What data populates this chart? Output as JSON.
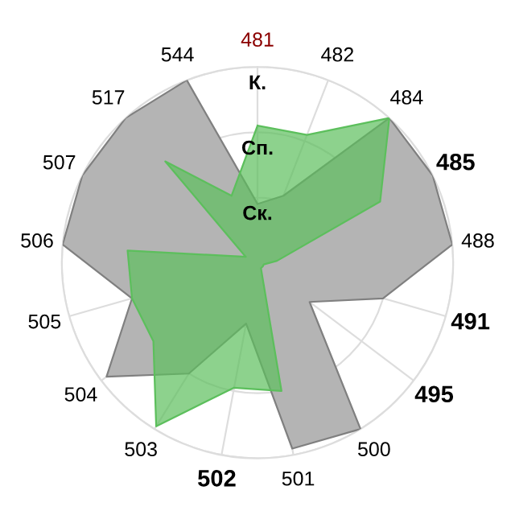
{
  "chart_data": {
    "type": "radar",
    "categories": [
      "481",
      "482",
      "484",
      "485",
      "488",
      "491",
      "495",
      "500",
      "501",
      "502",
      "503",
      "504",
      "505",
      "506",
      "507",
      "517",
      "544"
    ],
    "series": [
      {
        "color": "#b4b4b4",
        "values": [
          0.9,
          1.1,
          3.0,
          3.0,
          3.0,
          2.0,
          1.0,
          3.0,
          2.9,
          0.95,
          2.0,
          2.9,
          2.0,
          3.0,
          3.0,
          3.0,
          3.0
        ]
      },
      {
        "color": "#5cbf5c",
        "values": [
          2.1,
          2.1,
          3.0,
          2.1,
          0.3,
          0.1,
          0.1,
          0.1,
          2.0,
          1.95,
          2.95,
          2.0,
          2.0,
          2.0,
          0.2,
          2.1,
          1.1
        ]
      }
    ],
    "ylim": [
      0,
      3
    ],
    "yticks": [
      {
        "value": 1,
        "label": "Ск."
      },
      {
        "value": 2,
        "label": "Сп."
      },
      {
        "value": 3,
        "label": "К."
      }
    ],
    "grid": true,
    "marker": "none"
  }
}
